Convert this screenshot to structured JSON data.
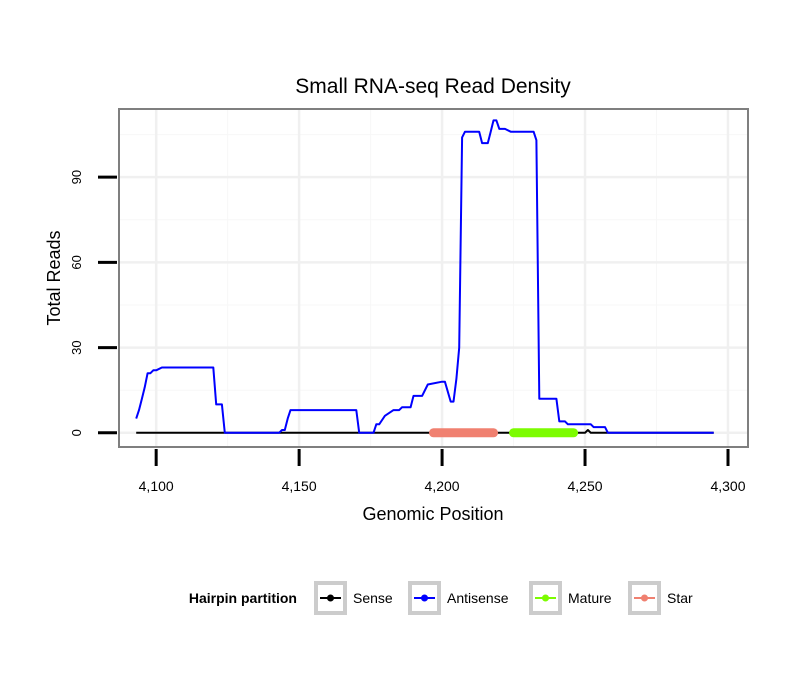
{
  "chart_data": {
    "type": "line",
    "title": "Small RNA-seq Read Density",
    "xlabel": "Genomic Position",
    "ylabel": "Total Reads",
    "xlim": [
      4087,
      4307
    ],
    "ylim": [
      -5,
      114
    ],
    "xticks": [
      4100,
      4150,
      4200,
      4250,
      4300
    ],
    "xtick_labels": [
      "4,100",
      "4,150",
      "4,200",
      "4,250",
      "4,300"
    ],
    "yticks": [
      0,
      30,
      60,
      90
    ],
    "ytick_labels": [
      "0",
      "30",
      "60",
      "90"
    ],
    "grid": true,
    "legend": {
      "title": "Hairpin partition",
      "position": "bottom",
      "entries": [
        "Sense",
        "Antisense",
        "Mature",
        "Star"
      ]
    },
    "series": [
      {
        "name": "Sense",
        "color": "#000000",
        "style": "line",
        "x": [
          4093,
          4250,
          4251,
          4252,
          4295
        ],
        "y": [
          0,
          0,
          1,
          0,
          0
        ]
      },
      {
        "name": "Antisense",
        "color": "#0000ff",
        "style": "line",
        "x": [
          4093,
          4094,
          4095,
          4096,
          4097,
          4098,
          4099,
          4100,
          4102,
          4103,
          4120,
          4121,
          4123,
          4124,
          4125,
          4143,
          4144,
          4145,
          4146,
          4147,
          4166,
          4170,
          4171,
          4172,
          4175,
          4176,
          4177,
          4178,
          4180,
          4183,
          4185,
          4186,
          4189,
          4190,
          4193,
          4195,
          4200,
          4201,
          4203,
          4204,
          4205,
          4206,
          4207,
          4208,
          4209,
          4213,
          4214,
          4216,
          4217,
          4218,
          4219,
          4220,
          4221,
          4222,
          4224,
          4226,
          4232,
          4233,
          4234,
          4236,
          4240,
          4241,
          4243,
          4244,
          4245,
          4252,
          4253,
          4257,
          4258,
          4260,
          4261,
          4295
        ],
        "y": [
          5,
          8,
          12,
          16,
          21,
          21,
          22,
          22,
          23,
          23,
          23,
          10,
          10,
          0,
          0,
          0,
          1,
          1,
          5,
          8,
          8,
          8,
          0,
          0,
          0,
          0,
          3,
          3,
          6,
          8,
          8,
          9,
          9,
          13,
          13,
          17,
          18,
          18,
          11,
          11,
          19,
          30,
          104,
          106,
          106,
          106,
          102,
          102,
          106,
          110,
          110,
          107,
          107,
          107,
          106,
          106,
          106,
          103,
          12,
          12,
          12,
          4,
          4,
          3,
          3,
          3,
          2,
          2,
          0,
          0,
          0,
          0
        ]
      },
      {
        "name": "Mature",
        "color": "#7cfc00",
        "style": "band",
        "x": [
          4225,
          4246
        ],
        "y": [
          0,
          0
        ]
      },
      {
        "name": "Star",
        "color": "#f08070",
        "style": "band",
        "x": [
          4197,
          4218
        ],
        "y": [
          0,
          0
        ]
      }
    ]
  }
}
